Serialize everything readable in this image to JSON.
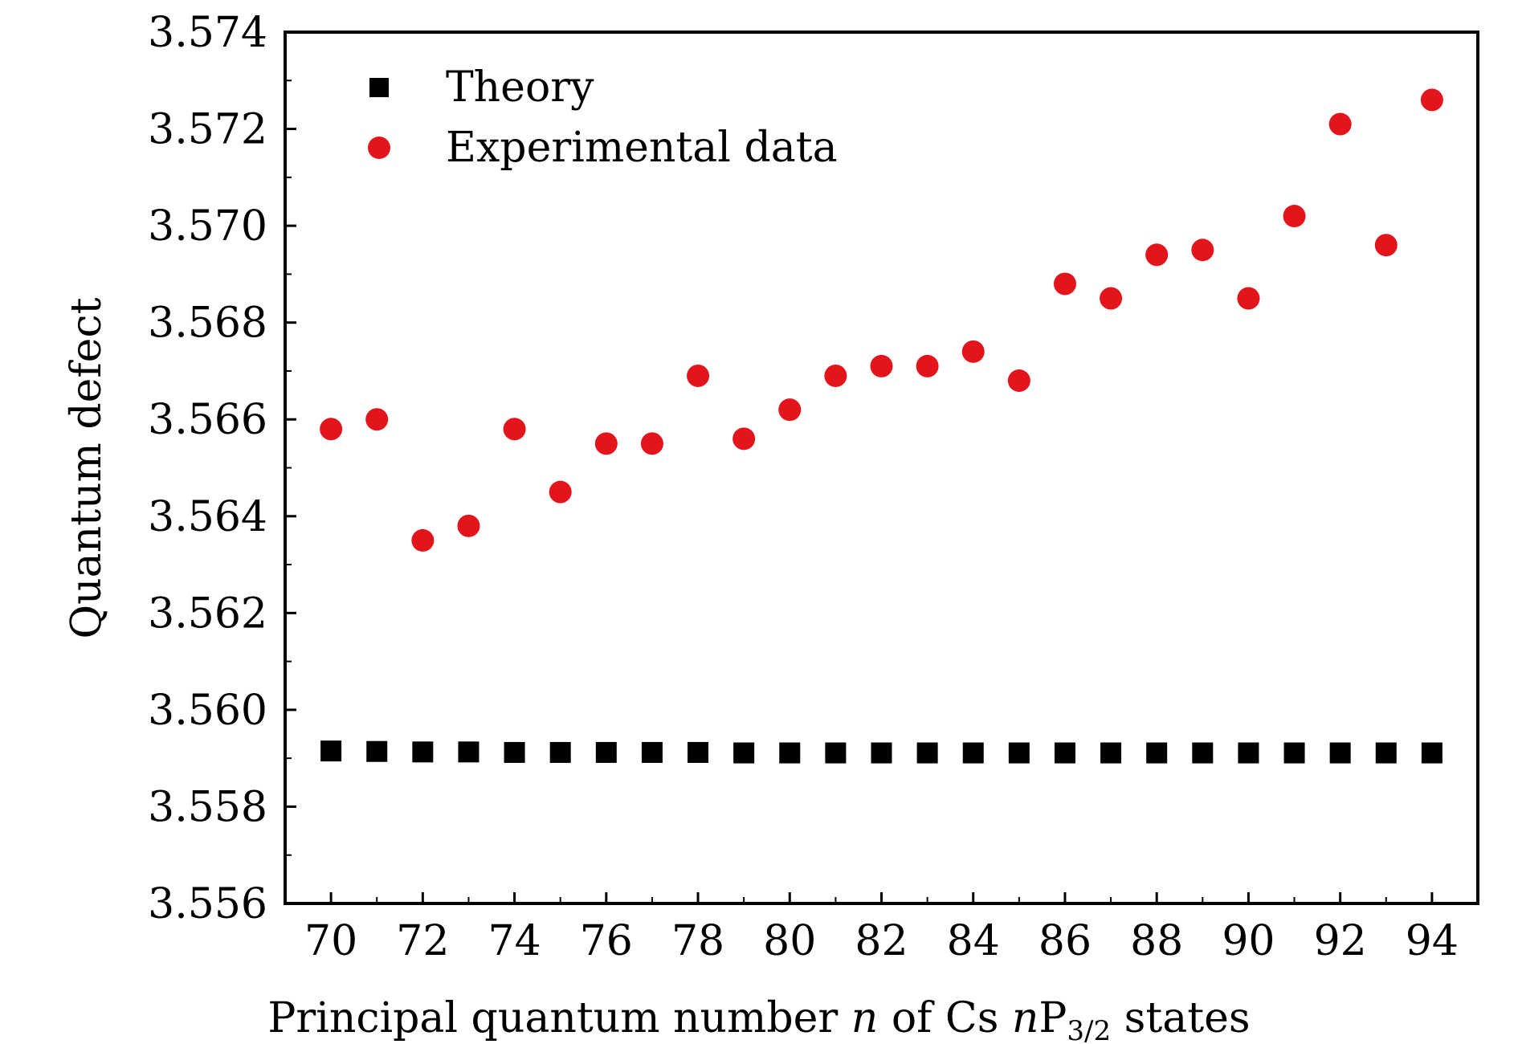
{
  "chart_data": {
    "type": "scatter",
    "xlabel": {
      "prefix": "Principal quantum number ",
      "var1": "n",
      "middle": " of Cs ",
      "var2": "n",
      "p": "P",
      "subscript": "3/2",
      "suffix": " states"
    },
    "ylabel": "Quantum defect",
    "xlim": [
      69,
      95
    ],
    "ylim": [
      3.556,
      3.574
    ],
    "x_ticks": [
      "70",
      "72",
      "74",
      "76",
      "78",
      "80",
      "82",
      "84",
      "86",
      "88",
      "90",
      "92",
      "94"
    ],
    "y_ticks": [
      "3.556",
      "3.558",
      "3.560",
      "3.562",
      "3.564",
      "3.566",
      "3.568",
      "3.570",
      "3.572",
      "3.574"
    ],
    "legend_position": "top-left",
    "x": [
      70,
      71,
      72,
      73,
      74,
      75,
      76,
      77,
      78,
      79,
      80,
      81,
      82,
      83,
      84,
      85,
      86,
      87,
      88,
      89,
      90,
      91,
      92,
      93,
      94
    ],
    "series": [
      {
        "name": "Theory",
        "marker": "square",
        "color": "#000000",
        "values": [
          3.55915,
          3.55914,
          3.55913,
          3.55913,
          3.55912,
          3.55912,
          3.55912,
          3.55912,
          3.55912,
          3.55911,
          3.55911,
          3.55911,
          3.55911,
          3.55911,
          3.55911,
          3.55911,
          3.55911,
          3.55911,
          3.55911,
          3.55911,
          3.55911,
          3.55911,
          3.55911,
          3.55911,
          3.55911
        ]
      },
      {
        "name": "Experimental data",
        "marker": "circle",
        "color": "#e3141c",
        "values": [
          3.5658,
          3.566,
          3.5635,
          3.5638,
          3.5658,
          3.5645,
          3.5655,
          3.5655,
          3.5669,
          3.5656,
          3.5662,
          3.5669,
          3.5671,
          3.5671,
          3.5674,
          3.5668,
          3.5688,
          3.5685,
          3.5694,
          3.5695,
          3.5685,
          3.5702,
          3.5721,
          3.5696,
          3.5726
        ]
      }
    ]
  }
}
